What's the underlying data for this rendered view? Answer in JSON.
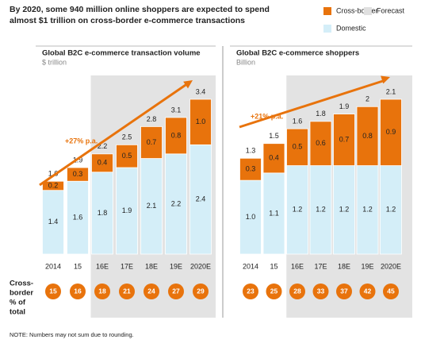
{
  "title": [
    "By 2020, some 940 million online shoppers are expected to spend",
    "almost $1 trillion on cross-border e-commerce transactions"
  ],
  "forecast_legend": "Forecast",
  "row_label": [
    "Cross-",
    "border",
    "% of",
    "total"
  ],
  "note": "NOTE: Numbers may not sum due to rounding.",
  "chart_data": [
    {
      "type": "bar",
      "stacked": true,
      "title": "Global B2C e-commerce transaction volume",
      "subtitle": "$ trillion",
      "annotation": "+27% p.a.",
      "categories": [
        "2014",
        "15",
        "16E",
        "17E",
        "18E",
        "19E",
        "2020E"
      ],
      "series": [
        {
          "name": "Domestic",
          "color": "#d4eef8",
          "values": [
            1.4,
            1.6,
            1.8,
            1.9,
            2.1,
            2.2,
            2.4
          ]
        },
        {
          "name": "Cross-border",
          "color": "#e8730c",
          "values": [
            0.2,
            0.3,
            0.4,
            0.5,
            0.7,
            0.8,
            1.0
          ],
          "value_labels": [
            "0.2",
            "0.3",
            "0.4",
            "0.5",
            "0.7",
            "0.8",
            "1.0"
          ]
        }
      ],
      "totals": [
        1.6,
        1.9,
        2.2,
        2.5,
        2.8,
        3.1,
        3.4
      ],
      "cross_border_share": [
        15,
        16,
        18,
        21,
        24,
        27,
        29
      ]
    },
    {
      "type": "bar",
      "stacked": true,
      "title": "Global B2C e-commerce shoppers",
      "subtitle": "Billion",
      "annotation": "+21% p.a.",
      "categories": [
        "2014",
        "15",
        "16E",
        "17E",
        "18E",
        "19E",
        "2020E"
      ],
      "series": [
        {
          "name": "Domestic",
          "color": "#d4eef8",
          "values": [
            1.0,
            1.1,
            1.2,
            1.2,
            1.2,
            1.2,
            1.2
          ],
          "value_labels": [
            "1.0",
            "1.1",
            "1.2",
            "1.2",
            "1.2",
            "1.2",
            "1.2"
          ]
        },
        {
          "name": "Cross-border",
          "color": "#e8730c",
          "values": [
            0.3,
            0.4,
            0.5,
            0.6,
            0.7,
            0.8,
            0.9
          ]
        }
      ],
      "totals": [
        1.3,
        1.5,
        1.6,
        1.8,
        1.9,
        2.0,
        2.1
      ],
      "cross_border_share": [
        23,
        25,
        28,
        33,
        37,
        42,
        45
      ]
    }
  ]
}
